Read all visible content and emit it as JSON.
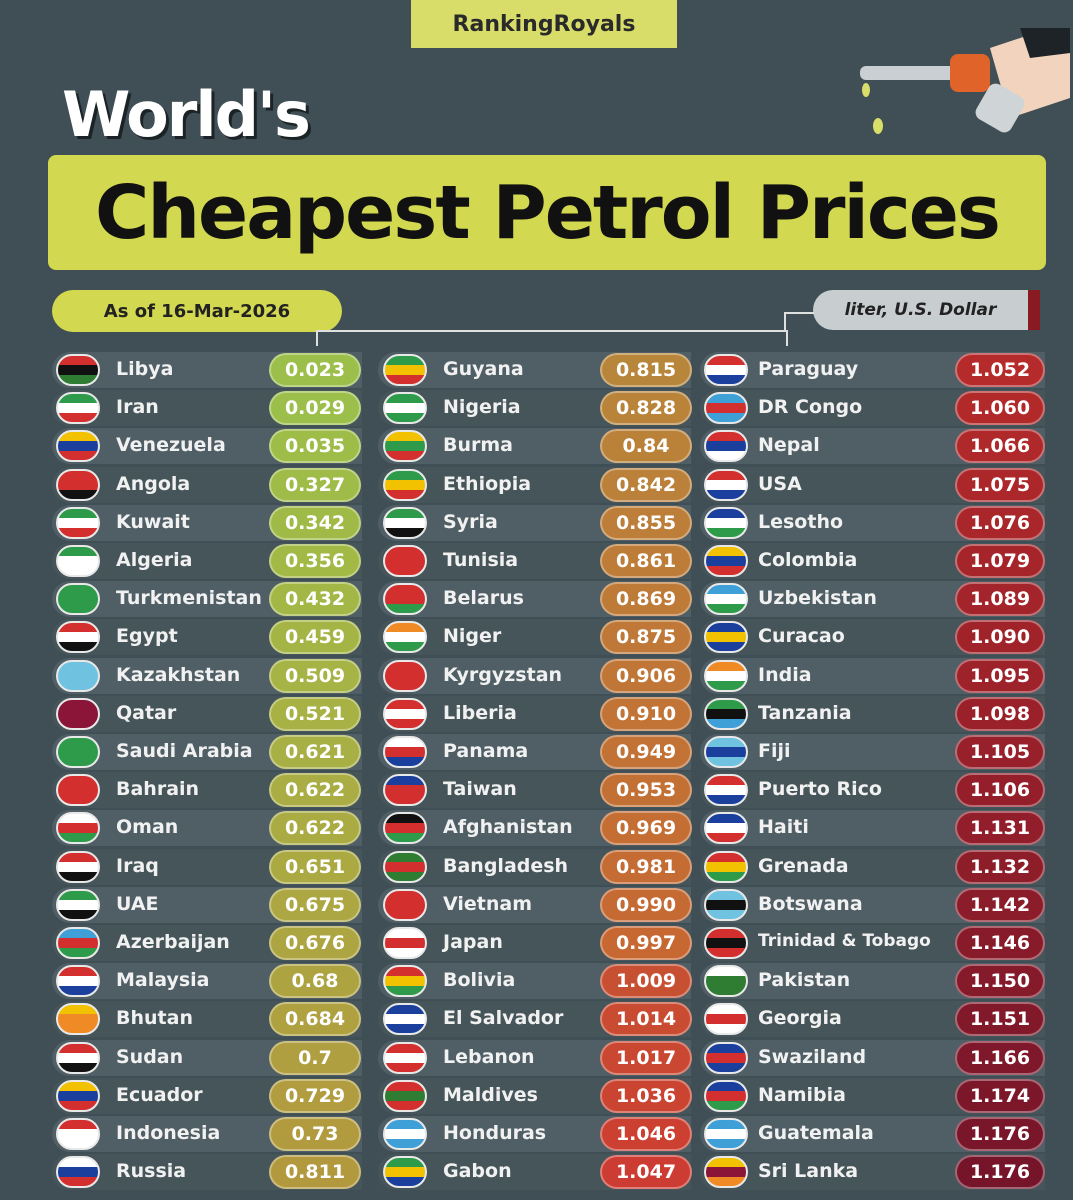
{
  "brand": "RankingRoyals",
  "title_line1": "World's",
  "title_line2": "Cheapest Petrol Prices",
  "date_label": "As of 16-Mar-2026",
  "unit_label": "liter, U.S. Dollar",
  "chart_data": {
    "type": "table",
    "columns": [
      {
        "rows": [
          {
            "country": "Libya",
            "value": "0.023",
            "color": "#9bbf4a",
            "flag": [
              "#d32f2f",
              "#111111",
              "#2e7d32"
            ]
          },
          {
            "country": "Iran",
            "value": "0.029",
            "color": "#9bbf4a",
            "flag": [
              "#2e9b4a",
              "#ffffff",
              "#d32f2f"
            ]
          },
          {
            "country": "Venezuela",
            "value": "0.035",
            "color": "#9dbd48",
            "flag": [
              "#f2c200",
              "#1b3f9c",
              "#d32f2f"
            ]
          },
          {
            "country": "Angola",
            "value": "0.327",
            "color": "#9fbb48",
            "flag": [
              "#d32f2f",
              "#d32f2f",
              "#111111"
            ]
          },
          {
            "country": "Kuwait",
            "value": "0.342",
            "color": "#a0ba47",
            "flag": [
              "#2e9b4a",
              "#ffffff",
              "#d32f2f"
            ]
          },
          {
            "country": "Algeria",
            "value": "0.356",
            "color": "#a2b946",
            "flag": [
              "#2e9b4a",
              "#ffffff",
              "#ffffff"
            ]
          },
          {
            "country": "Turkmenistan",
            "value": "0.432",
            "color": "#a3b746",
            "flag": [
              "#2e9b4a",
              "#2e9b4a",
              "#2e9b4a"
            ]
          },
          {
            "country": "Egypt",
            "value": "0.459",
            "color": "#a5b545",
            "flag": [
              "#d32f2f",
              "#ffffff",
              "#111111"
            ]
          },
          {
            "country": "Kazakhstan",
            "value": "0.509",
            "color": "#a6b345",
            "flag": [
              "#6fc3e0",
              "#6fc3e0",
              "#6fc3e0"
            ]
          },
          {
            "country": "Qatar",
            "value": "0.521",
            "color": "#a7b144",
            "flag": [
              "#8a1538",
              "#8a1538",
              "#8a1538"
            ]
          },
          {
            "country": "Saudi Arabia",
            "value": "0.621",
            "color": "#a8af44",
            "flag": [
              "#2e9b4a",
              "#2e9b4a",
              "#2e9b4a"
            ]
          },
          {
            "country": "Bahrain",
            "value": "0.622",
            "color": "#a9ad43",
            "flag": [
              "#d32f2f",
              "#d32f2f",
              "#d32f2f"
            ]
          },
          {
            "country": "Oman",
            "value": "0.622",
            "color": "#aaab43",
            "flag": [
              "#ffffff",
              "#d32f2f",
              "#2e9b4a"
            ]
          },
          {
            "country": "Iraq",
            "value": "0.651",
            "color": "#aba942",
            "flag": [
              "#d32f2f",
              "#ffffff",
              "#111111"
            ]
          },
          {
            "country": "UAE",
            "value": "0.675",
            "color": "#aca742",
            "flag": [
              "#2e9b4a",
              "#ffffff",
              "#111111"
            ]
          },
          {
            "country": "Azerbaijan",
            "value": "0.676",
            "color": "#ada541",
            "flag": [
              "#3fa0d8",
              "#d32f2f",
              "#2e9b4a"
            ]
          },
          {
            "country": "Malaysia",
            "value": "0.68",
            "color": "#aea341",
            "flag": [
              "#d32f2f",
              "#ffffff",
              "#1b3f9c"
            ]
          },
          {
            "country": "Bhutan",
            "value": "0.684",
            "color": "#afa140",
            "flag": [
              "#f2c200",
              "#f08a24",
              "#f08a24"
            ]
          },
          {
            "country": "Sudan",
            "value": "0.7",
            "color": "#b09f40",
            "flag": [
              "#d32f2f",
              "#ffffff",
              "#111111"
            ]
          },
          {
            "country": "Ecuador",
            "value": "0.729",
            "color": "#b19d3f",
            "flag": [
              "#f2c200",
              "#1b3f9c",
              "#d32f2f"
            ]
          },
          {
            "country": "Indonesia",
            "value": "0.73",
            "color": "#b29b3f",
            "flag": [
              "#d32f2f",
              "#ffffff",
              "#ffffff"
            ]
          },
          {
            "country": "Russia",
            "value": "0.811",
            "color": "#b3993e",
            "flag": [
              "#ffffff",
              "#1b3f9c",
              "#d32f2f"
            ]
          }
        ]
      },
      {
        "rows": [
          {
            "country": "Guyana",
            "value": "0.815",
            "color": "#b8863a",
            "flag": [
              "#2e9b4a",
              "#f2c200",
              "#d32f2f"
            ]
          },
          {
            "country": "Nigeria",
            "value": "0.828",
            "color": "#b9843a",
            "flag": [
              "#2e9b4a",
              "#ffffff",
              "#2e9b4a"
            ]
          },
          {
            "country": "Burma",
            "value": "0.84",
            "color": "#ba8239",
            "flag": [
              "#f2c200",
              "#2e9b4a",
              "#d32f2f"
            ]
          },
          {
            "country": "Ethiopia",
            "value": "0.842",
            "color": "#bb8039",
            "flag": [
              "#2e9b4a",
              "#f2c200",
              "#d32f2f"
            ]
          },
          {
            "country": "Syria",
            "value": "0.855",
            "color": "#bc7e38",
            "flag": [
              "#2e9b4a",
              "#ffffff",
              "#111111"
            ]
          },
          {
            "country": "Tunisia",
            "value": "0.861",
            "color": "#bd7c38",
            "flag": [
              "#d32f2f",
              "#d32f2f",
              "#d32f2f"
            ]
          },
          {
            "country": "Belarus",
            "value": "0.869",
            "color": "#be7a37",
            "flag": [
              "#d32f2f",
              "#d32f2f",
              "#2e9b4a"
            ]
          },
          {
            "country": "Niger",
            "value": "0.875",
            "color": "#bf7837",
            "flag": [
              "#f08a24",
              "#ffffff",
              "#2e9b4a"
            ]
          },
          {
            "country": "Kyrgyzstan",
            "value": "0.906",
            "color": "#c07636",
            "flag": [
              "#d32f2f",
              "#d32f2f",
              "#d32f2f"
            ]
          },
          {
            "country": "Liberia",
            "value": "0.910",
            "color": "#c17436",
            "flag": [
              "#d32f2f",
              "#ffffff",
              "#d32f2f"
            ]
          },
          {
            "country": "Panama",
            "value": "0.949",
            "color": "#c27235",
            "flag": [
              "#ffffff",
              "#d32f2f",
              "#1b3f9c"
            ]
          },
          {
            "country": "Taiwan",
            "value": "0.953",
            "color": "#c37035",
            "flag": [
              "#1b3f9c",
              "#d32f2f",
              "#d32f2f"
            ]
          },
          {
            "country": "Afghanistan",
            "value": "0.969",
            "color": "#c46e34",
            "flag": [
              "#111111",
              "#d32f2f",
              "#2e9b4a"
            ]
          },
          {
            "country": "Bangladesh",
            "value": "0.981",
            "color": "#c56c34",
            "flag": [
              "#2e7d32",
              "#d32f2f",
              "#2e7d32"
            ]
          },
          {
            "country": "Vietnam",
            "value": "0.990",
            "color": "#c66a33",
            "flag": [
              "#d32f2f",
              "#d32f2f",
              "#d32f2f"
            ]
          },
          {
            "country": "Japan",
            "value": "0.997",
            "color": "#c76833",
            "flag": [
              "#ffffff",
              "#d32f2f",
              "#ffffff"
            ]
          },
          {
            "country": "Bolivia",
            "value": "1.009",
            "color": "#c85032",
            "flag": [
              "#d32f2f",
              "#f2c200",
              "#2e9b4a"
            ]
          },
          {
            "country": "El Salvador",
            "value": "1.014",
            "color": "#c94c32",
            "flag": [
              "#1b3f9c",
              "#ffffff",
              "#1b3f9c"
            ]
          },
          {
            "country": "Lebanon",
            "value": "1.017",
            "color": "#ca4832",
            "flag": [
              "#d32f2f",
              "#ffffff",
              "#d32f2f"
            ]
          },
          {
            "country": "Maldives",
            "value": "1.036",
            "color": "#cb4432",
            "flag": [
              "#d32f2f",
              "#2e7d32",
              "#d32f2f"
            ]
          },
          {
            "country": "Honduras",
            "value": "1.046",
            "color": "#cc4032",
            "flag": [
              "#3fa0d8",
              "#ffffff",
              "#3fa0d8"
            ]
          },
          {
            "country": "Gabon",
            "value": "1.047",
            "color": "#cd3c32",
            "flag": [
              "#2e9b4a",
              "#f2c200",
              "#1b3f9c"
            ]
          }
        ]
      },
      {
        "rows": [
          {
            "country": "Paraguay",
            "value": "1.052",
            "color": "#b52a2a",
            "flag": [
              "#d32f2f",
              "#ffffff",
              "#1b3f9c"
            ]
          },
          {
            "country": "DR Congo",
            "value": "1.060",
            "color": "#b2292a",
            "flag": [
              "#3fa0d8",
              "#d32f2f",
              "#3fa0d8"
            ]
          },
          {
            "country": "Nepal",
            "value": "1.066",
            "color": "#af282a",
            "flag": [
              "#d32f2f",
              "#1b3f9c",
              "#ffffff"
            ]
          },
          {
            "country": "USA",
            "value": "1.075",
            "color": "#ac272a",
            "flag": [
              "#d32f2f",
              "#ffffff",
              "#1b3f9c"
            ]
          },
          {
            "country": "Lesotho",
            "value": "1.076",
            "color": "#a9262a",
            "flag": [
              "#1b3f9c",
              "#ffffff",
              "#2e9b4a"
            ]
          },
          {
            "country": "Colombia",
            "value": "1.079",
            "color": "#a6252a",
            "flag": [
              "#f2c200",
              "#1b3f9c",
              "#d32f2f"
            ]
          },
          {
            "country": "Uzbekistan",
            "value": "1.089",
            "color": "#a3242a",
            "flag": [
              "#3fa0d8",
              "#ffffff",
              "#2e9b4a"
            ]
          },
          {
            "country": "Curacao",
            "value": "1.090",
            "color": "#a0232a",
            "flag": [
              "#1b3f9c",
              "#f2c200",
              "#1b3f9c"
            ]
          },
          {
            "country": "India",
            "value": "1.095",
            "color": "#9d222a",
            "flag": [
              "#f08a24",
              "#ffffff",
              "#2e9b4a"
            ]
          },
          {
            "country": "Tanzania",
            "value": "1.098",
            "color": "#9a212a",
            "flag": [
              "#2e9b4a",
              "#111111",
              "#3fa0d8"
            ]
          },
          {
            "country": "Fiji",
            "value": "1.105",
            "color": "#97202a",
            "flag": [
              "#6fc3e0",
              "#1b3f9c",
              "#6fc3e0"
            ]
          },
          {
            "country": "Puerto Rico",
            "value": "1.106",
            "color": "#941f2a",
            "flag": [
              "#d32f2f",
              "#ffffff",
              "#1b3f9c"
            ]
          },
          {
            "country": "Haiti",
            "value": "1.131",
            "color": "#911e2a",
            "flag": [
              "#1b3f9c",
              "#ffffff",
              "#d32f2f"
            ]
          },
          {
            "country": "Grenada",
            "value": "1.132",
            "color": "#8e1d2a",
            "flag": [
              "#d32f2f",
              "#f2c200",
              "#2e9b4a"
            ]
          },
          {
            "country": "Botswana",
            "value": "1.142",
            "color": "#8b1c2a",
            "flag": [
              "#6fc3e0",
              "#111111",
              "#6fc3e0"
            ]
          },
          {
            "country": "Trinidad & Tobago",
            "value": "1.146",
            "color": "#881b2a",
            "flag": [
              "#d32f2f",
              "#111111",
              "#d32f2f"
            ]
          },
          {
            "country": "Pakistan",
            "value": "1.150",
            "color": "#851a2a",
            "flag": [
              "#ffffff",
              "#2e7d32",
              "#2e7d32"
            ]
          },
          {
            "country": "Georgia",
            "value": "1.151",
            "color": "#82192a",
            "flag": [
              "#ffffff",
              "#d32f2f",
              "#ffffff"
            ]
          },
          {
            "country": "Swaziland",
            "value": "1.166",
            "color": "#7f182a",
            "flag": [
              "#1b3f9c",
              "#d32f2f",
              "#1b3f9c"
            ]
          },
          {
            "country": "Namibia",
            "value": "1.174",
            "color": "#7c172a",
            "flag": [
              "#1b3f9c",
              "#d32f2f",
              "#2e9b4a"
            ]
          },
          {
            "country": "Guatemala",
            "value": "1.176",
            "color": "#79162a",
            "flag": [
              "#3fa0d8",
              "#ffffff",
              "#3fa0d8"
            ]
          },
          {
            "country": "Sri Lanka",
            "value": "1.176",
            "color": "#76152a",
            "flag": [
              "#f2c200",
              "#8a1538",
              "#f08a24"
            ]
          }
        ]
      }
    ]
  }
}
